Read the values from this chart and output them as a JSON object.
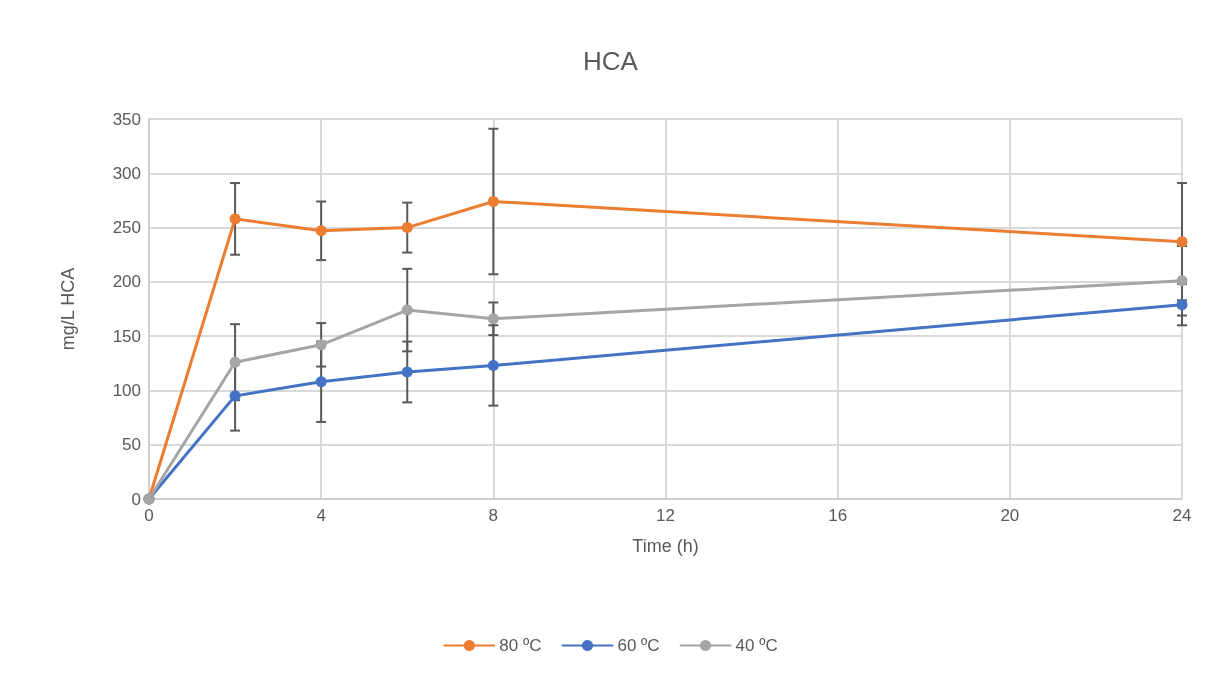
{
  "chart_data": {
    "type": "line",
    "title": "HCA",
    "xlabel": "Time (h)",
    "ylabel": "mg/L HCA",
    "x": [
      0,
      2,
      4,
      6,
      8,
      24
    ],
    "xlim": [
      0,
      24
    ],
    "xticks": [
      0,
      4,
      8,
      12,
      16,
      20,
      24
    ],
    "ylim": [
      0,
      350
    ],
    "yticks": [
      0,
      50,
      100,
      150,
      200,
      250,
      300,
      350
    ],
    "grid": true,
    "legend": "bottom",
    "marker": "circle",
    "line_style": "solid",
    "series": [
      {
        "name": "80 ºC",
        "color": "#ed7d31",
        "values": [
          0,
          258,
          247,
          250,
          274,
          237
        ],
        "errors": [
          null,
          33,
          27,
          23,
          67,
          54
        ]
      },
      {
        "name": "60 ºC",
        "color": "#4472c4",
        "values": [
          0,
          95,
          108,
          117,
          123,
          179
        ],
        "errors": [
          null,
          32,
          37,
          28,
          37,
          19
        ]
      },
      {
        "name": "40 ºC",
        "color": "#a5a5a5",
        "values": [
          0,
          126,
          142,
          174,
          166,
          201
        ],
        "errors": [
          null,
          35,
          20,
          38,
          15,
          32
        ]
      }
    ]
  }
}
